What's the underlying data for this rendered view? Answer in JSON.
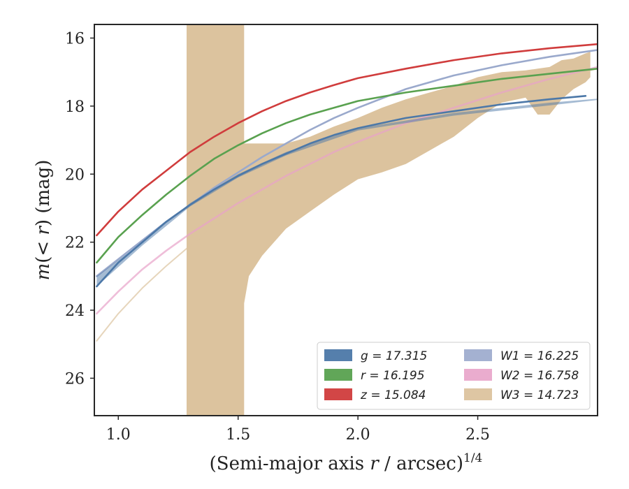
{
  "chart_data": {
    "type": "line",
    "xlabel_main": "(Semi-major axis ",
    "xlabel_var": "r",
    "xlabel_unit": " / arcsec)",
    "xlabel_exp": "1/4",
    "ylabel_prefix": "m",
    "ylabel_inner": "(< ",
    "ylabel_var": "r",
    "ylabel_suffix": ") (mag)",
    "xlim": [
      0.9,
      3.0
    ],
    "ylim": [
      27.1,
      15.6
    ],
    "xticks": [
      1.0,
      1.5,
      2.0,
      2.5
    ],
    "xtick_labels": [
      "1.0",
      "1.5",
      "2.0",
      "2.5"
    ],
    "yticks": [
      16,
      18,
      20,
      22,
      24,
      26
    ],
    "ytick_labels": [
      "16",
      "18",
      "20",
      "22",
      "24",
      "26"
    ],
    "legend_position": "lower-right",
    "legend_columns": 2,
    "series": [
      {
        "name": "g = 17.315",
        "key": "g",
        "color": "#4c78a8",
        "x": [
          0.91,
          1.0,
          1.1,
          1.2,
          1.3,
          1.4,
          1.5,
          1.6,
          1.7,
          1.8,
          1.9,
          2.0,
          2.2,
          2.4,
          2.6,
          2.8,
          2.95
        ],
        "y": [
          23.3,
          22.6,
          22.0,
          21.4,
          20.9,
          20.45,
          20.05,
          19.7,
          19.4,
          19.1,
          18.85,
          18.65,
          18.35,
          18.15,
          17.95,
          17.8,
          17.7
        ],
        "band_x": [
          0.91,
          1.1,
          1.3,
          1.5,
          1.7,
          2.0,
          2.4,
          2.8,
          3.0
        ],
        "band_lo": [
          23.0,
          22.0,
          20.85,
          20.0,
          19.35,
          18.65,
          18.2,
          17.9,
          17.78
        ],
        "band_hi": [
          23.3,
          22.1,
          20.95,
          20.1,
          19.45,
          18.72,
          18.28,
          17.98,
          17.82
        ]
      },
      {
        "name": "r = 16.195",
        "key": "r",
        "color": "#59a14f",
        "x": [
          0.91,
          1.0,
          1.1,
          1.2,
          1.3,
          1.4,
          1.5,
          1.6,
          1.7,
          1.8,
          1.9,
          2.0,
          2.2,
          2.4,
          2.6,
          2.8,
          3.0
        ],
        "y": [
          22.6,
          21.85,
          21.2,
          20.6,
          20.05,
          19.55,
          19.15,
          18.8,
          18.5,
          18.25,
          18.05,
          17.85,
          17.6,
          17.4,
          17.2,
          17.05,
          16.9
        ]
      },
      {
        "name": "z = 15.084",
        "key": "z",
        "color": "#d03c3c",
        "x": [
          0.91,
          1.0,
          1.1,
          1.2,
          1.3,
          1.4,
          1.5,
          1.6,
          1.7,
          1.8,
          1.9,
          2.0,
          2.2,
          2.4,
          2.6,
          2.8,
          3.0
        ],
        "y": [
          21.8,
          21.1,
          20.45,
          19.9,
          19.35,
          18.9,
          18.5,
          18.15,
          17.85,
          17.6,
          17.38,
          17.18,
          16.9,
          16.65,
          16.45,
          16.3,
          16.18
        ]
      },
      {
        "name": "W1 = 16.225",
        "key": "W1",
        "color": "#9aa9cc",
        "x": [
          0.91,
          1.0,
          1.1,
          1.2,
          1.3,
          1.4,
          1.5,
          1.6,
          1.7,
          1.8,
          1.9,
          2.0,
          2.2,
          2.4,
          2.6,
          2.8,
          3.0
        ],
        "y": [
          23.0,
          22.5,
          21.95,
          21.4,
          20.9,
          20.4,
          19.95,
          19.5,
          19.1,
          18.7,
          18.35,
          18.05,
          17.5,
          17.1,
          16.8,
          16.55,
          16.35
        ]
      },
      {
        "name": "W2 = 16.758",
        "key": "W2",
        "color": "#e8a3c9",
        "x": [
          0.91,
          1.0,
          1.1,
          1.2,
          1.3,
          1.4,
          1.5,
          1.6,
          1.7,
          1.8,
          1.9,
          2.0,
          2.2,
          2.4,
          2.6,
          2.8,
          3.0
        ],
        "y": [
          24.1,
          23.45,
          22.8,
          22.25,
          21.75,
          21.3,
          20.85,
          20.45,
          20.05,
          19.7,
          19.35,
          19.05,
          18.5,
          18.05,
          17.6,
          17.2,
          16.85
        ]
      },
      {
        "name": "W3 = 14.723",
        "key": "W3",
        "color": "#dcc39e",
        "x": [
          0.91,
          1.0,
          1.1,
          1.2,
          1.3,
          1.4,
          1.5,
          1.6,
          1.7,
          1.8,
          1.9,
          2.0,
          2.2,
          2.4,
          2.6,
          2.8,
          3.0
        ],
        "y": [
          24.9,
          24.1,
          23.35,
          22.7,
          22.1,
          21.55,
          21.0,
          20.55,
          20.15,
          19.75,
          19.4,
          19.1,
          18.55,
          18.0,
          17.6,
          17.2,
          16.9
        ],
        "band_x": [
          1.285,
          1.285,
          1.525,
          1.525,
          1.545,
          1.6,
          1.7,
          1.8,
          1.9,
          2.0,
          2.1,
          2.2,
          2.3,
          2.4,
          2.5,
          2.6,
          2.7,
          2.75,
          2.8,
          2.85,
          2.9,
          2.95,
          2.97
        ],
        "band_lo": [
          27.1,
          27.1,
          27.1,
          23.8,
          23.0,
          22.4,
          21.6,
          21.1,
          20.6,
          20.15,
          19.95,
          19.7,
          19.3,
          18.9,
          18.35,
          17.9,
          17.75,
          18.25,
          18.25,
          17.8,
          17.5,
          17.3,
          17.15
        ],
        "band_hi": [
          15.6,
          15.6,
          15.6,
          19.1,
          19.1,
          19.1,
          19.1,
          18.9,
          18.6,
          18.35,
          18.05,
          17.8,
          17.6,
          17.4,
          17.15,
          17.0,
          16.95,
          16.9,
          16.85,
          16.65,
          16.6,
          16.45,
          16.4
        ]
      }
    ]
  }
}
